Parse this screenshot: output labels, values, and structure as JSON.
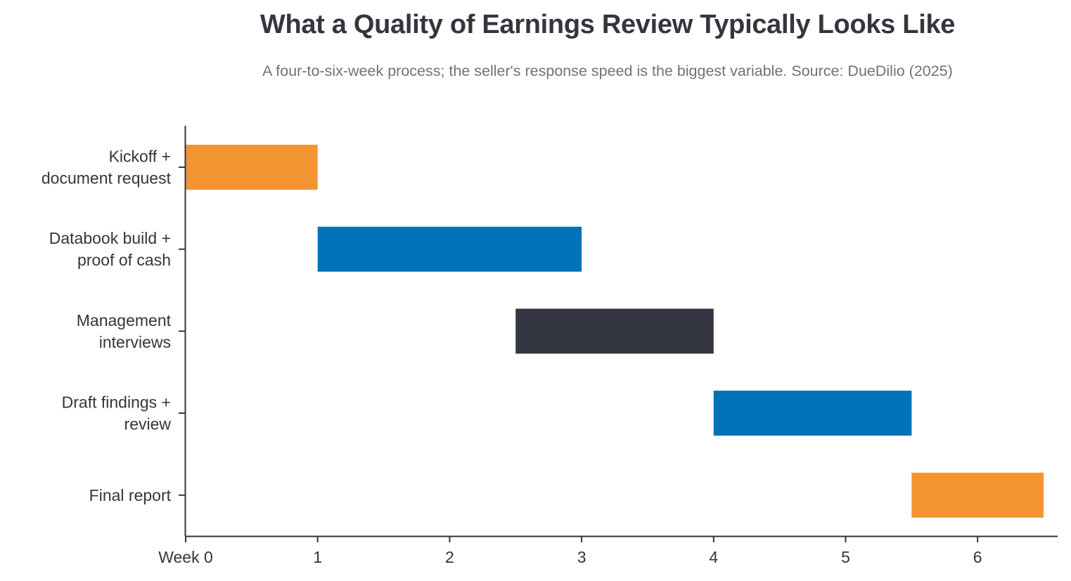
{
  "chart_data": {
    "type": "bar",
    "orientation": "horizontal",
    "subtype": "gantt",
    "title": "What a Quality of Earnings Review Typically Looks Like",
    "subtitle": "A four-to-six-week process; the seller's response speed is the biggest variable. Source: DueDilio (2025)",
    "xlabel": "",
    "ylabel": "",
    "xlim": [
      0,
      6.6
    ],
    "x_ticks": [
      0,
      1,
      2,
      3,
      4,
      5,
      6
    ],
    "x_tick_labels": [
      "Week 0",
      "1",
      "2",
      "3",
      "4",
      "5",
      "6"
    ],
    "grid": false,
    "legend": "none",
    "tasks": [
      {
        "label": [
          "Kickoff +",
          "document request"
        ],
        "start": 0,
        "end": 1,
        "color": "#f39433"
      },
      {
        "label": [
          "Databook build +",
          "proof of cash"
        ],
        "start": 1,
        "end": 3,
        "color": "#0072bb"
      },
      {
        "label": [
          "Management",
          "interviews"
        ],
        "start": 2.5,
        "end": 4,
        "color": "#343741"
      },
      {
        "label": [
          "Draft findings +",
          "review"
        ],
        "start": 4,
        "end": 5.5,
        "color": "#0072bb"
      },
      {
        "label": [
          "Final report"
        ],
        "start": 5.5,
        "end": 6.5,
        "color": "#f39433"
      }
    ]
  }
}
